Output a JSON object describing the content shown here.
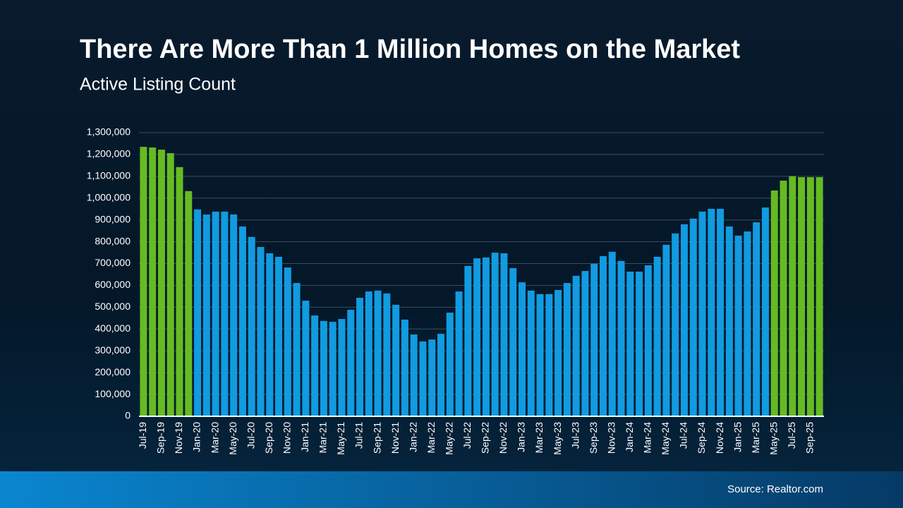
{
  "chart_data": {
    "type": "bar",
    "title": "There Are More Than 1 Million Homes on the Market",
    "subtitle": "Active Listing Count",
    "source": "Source: Realtor.com",
    "categories": [
      "Jul-19",
      null,
      "Sep-19",
      null,
      "Nov-19",
      null,
      "Jan-20",
      null,
      "Mar-20",
      null,
      "May-20",
      null,
      "Jul-20",
      null,
      "Sep-20",
      null,
      "Nov-20",
      null,
      "Jan-21",
      null,
      "Mar-21",
      null,
      "May-21",
      null,
      "Jul-21",
      null,
      "Sep-21",
      null,
      "Nov-21",
      null,
      "Jan-22",
      null,
      "Mar-22",
      null,
      "May-22",
      null,
      "Jul-22",
      null,
      "Sep-22",
      null,
      "Nov-22",
      null,
      "Jan-23",
      null,
      "Mar-23",
      null,
      "May-23",
      null,
      "Jul-23",
      null,
      "Sep-23",
      null,
      "Nov-23",
      null,
      "Jan-24",
      null,
      "Mar-24",
      null,
      "May-24",
      null,
      "Jul-24",
      null,
      "Sep-24",
      null,
      "Nov-24",
      null,
      "Jan-25",
      null,
      "Mar-25",
      null,
      "May-25",
      null,
      "Jul-25",
      null,
      "Sep-25",
      null
    ],
    "values": [
      1235000,
      1232000,
      1222000,
      1206000,
      1142000,
      1032000,
      948000,
      925000,
      938000,
      938000,
      925000,
      870000,
      822000,
      776000,
      747000,
      731000,
      682000,
      611000,
      530000,
      462000,
      437000,
      433000,
      446000,
      488000,
      543000,
      572000,
      576000,
      563000,
      511000,
      443000,
      375000,
      343000,
      352000,
      378000,
      475000,
      572000,
      689000,
      724000,
      728000,
      750000,
      747000,
      679000,
      614000,
      576000,
      560000,
      560000,
      579000,
      611000,
      644000,
      666000,
      699000,
      734000,
      754000,
      712000,
      663000,
      663000,
      692000,
      731000,
      786000,
      838000,
      880000,
      906000,
      938000,
      951000,
      951000,
      870000,
      828000,
      847000,
      889000,
      957000,
      1035000,
      1080000,
      1100000,
      1096000,
      1096000,
      1096000
    ],
    "colors": [
      "#66bb22",
      "#66bb22",
      "#66bb22",
      "#66bb22",
      "#66bb22",
      "#66bb22",
      "#119be0",
      "#119be0",
      "#119be0",
      "#119be0",
      "#119be0",
      "#119be0",
      "#119be0",
      "#119be0",
      "#119be0",
      "#119be0",
      "#119be0",
      "#119be0",
      "#119be0",
      "#119be0",
      "#119be0",
      "#119be0",
      "#119be0",
      "#119be0",
      "#119be0",
      "#119be0",
      "#119be0",
      "#119be0",
      "#119be0",
      "#119be0",
      "#119be0",
      "#119be0",
      "#119be0",
      "#119be0",
      "#119be0",
      "#119be0",
      "#119be0",
      "#119be0",
      "#119be0",
      "#119be0",
      "#119be0",
      "#119be0",
      "#119be0",
      "#119be0",
      "#119be0",
      "#119be0",
      "#119be0",
      "#119be0",
      "#119be0",
      "#119be0",
      "#119be0",
      "#119be0",
      "#119be0",
      "#119be0",
      "#119be0",
      "#119be0",
      "#119be0",
      "#119be0",
      "#119be0",
      "#119be0",
      "#119be0",
      "#119be0",
      "#119be0",
      "#119be0",
      "#119be0",
      "#119be0",
      "#119be0",
      "#119be0",
      "#119be0",
      "#119be0",
      "#66bb22",
      "#66bb22",
      "#66bb22",
      "#66bb22",
      "#66bb22",
      "#66bb22"
    ],
    "ylim": [
      0,
      1300000
    ],
    "yticks": [
      0,
      {
        "value": 100000,
        "label": "100,000"
      },
      {
        "value": 200000,
        "label": "200,000"
      },
      {
        "value": 300000,
        "label": "300,000"
      },
      {
        "value": 400000,
        "label": "400,000"
      },
      {
        "value": 500000,
        "label": "500,000"
      },
      {
        "value": 600000,
        "label": "600,000"
      },
      {
        "value": 700000,
        "label": "700,000"
      },
      {
        "value": 800000,
        "label": "800,000"
      },
      {
        "value": 900000,
        "label": "900,000"
      },
      {
        "value": 1000000,
        "label": "1,000,000"
      },
      {
        "value": 1100000,
        "label": "1,100,000"
      },
      {
        "value": 1200000,
        "label": "1,200,000"
      },
      {
        "value": 1300000,
        "label": "1,300,000"
      }
    ],
    "grid": true
  }
}
